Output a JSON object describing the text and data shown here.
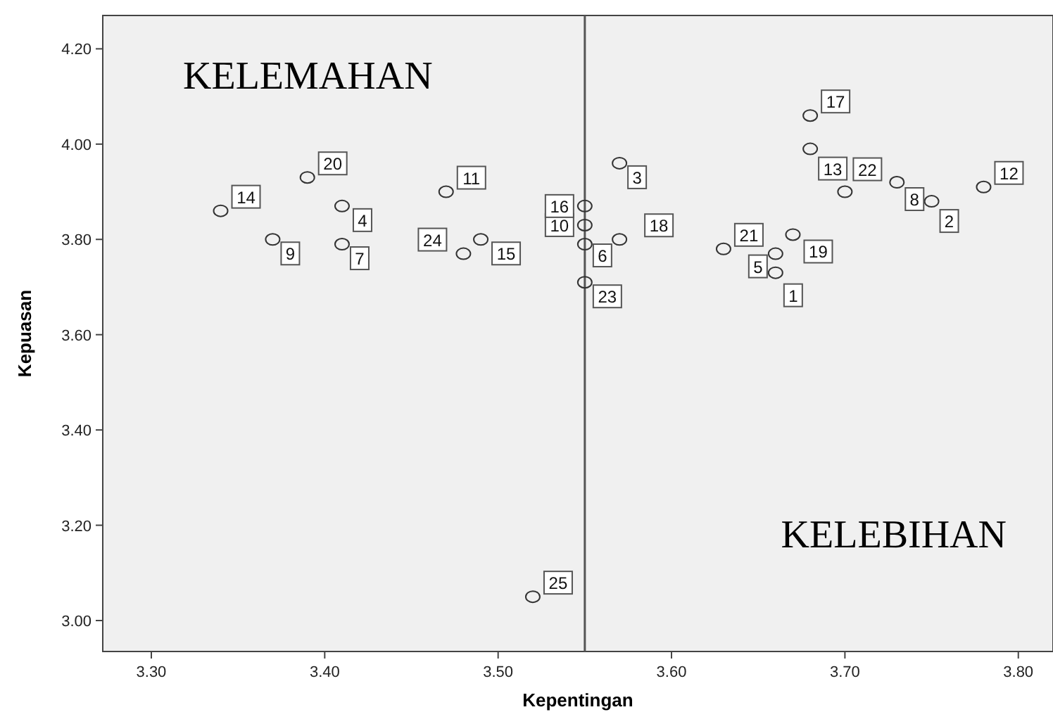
{
  "chart_data": {
    "type": "scatter",
    "xlabel": "Kepentingan",
    "ylabel": "Kepuasan",
    "x": [
      3.66,
      3.75,
      3.57,
      3.41,
      3.66,
      3.55,
      3.41,
      3.73,
      3.37,
      3.55,
      3.47,
      3.78,
      3.68,
      3.34,
      3.49,
      3.55,
      3.68,
      3.57,
      3.67,
      3.39,
      3.63,
      3.7,
      3.55,
      3.48,
      3.52
    ],
    "values": [
      3.73,
      3.88,
      3.96,
      3.87,
      3.77,
      3.79,
      3.79,
      3.92,
      3.8,
      3.83,
      3.9,
      3.91,
      3.99,
      3.86,
      3.8,
      3.87,
      4.06,
      3.8,
      3.81,
      3.93,
      3.78,
      3.9,
      3.71,
      3.77,
      3.05
    ],
    "color": "#333333",
    "marker": "circle",
    "grid": false,
    "xlim": [
      3.272,
      3.82
    ],
    "xticks": [
      {
        "value": 3.3,
        "label": "3.30"
      },
      {
        "value": 3.4,
        "label": "3.40"
      },
      {
        "value": 3.5,
        "label": "3.50"
      },
      {
        "value": 3.6,
        "label": "3.60"
      },
      {
        "value": 3.7,
        "label": "3.70"
      },
      {
        "value": 3.8,
        "label": "3.80"
      }
    ],
    "ylim": [
      2.935,
      4.27
    ],
    "yticks": [
      {
        "value": 3.0,
        "label": "3.00"
      },
      {
        "value": 3.2,
        "label": "3.20"
      },
      {
        "value": 3.4,
        "label": "3.40"
      },
      {
        "value": 3.6,
        "label": "3.60"
      },
      {
        "value": 3.8,
        "label": "3.80"
      },
      {
        "value": 4.0,
        "label": "4.00"
      },
      {
        "value": 4.2,
        "label": "4.20"
      }
    ],
    "ref_lines": [
      {
        "axis": "x",
        "value": 3.55,
        "color": "#555555"
      }
    ],
    "annotations": [
      "KELEMAHAN",
      "KELEBIHAN",
      {
        "text": "1",
        "x": 3.66,
        "y": 3.73
      },
      {
        "text": "2",
        "x": 3.75,
        "y": 3.88
      },
      {
        "text": "3",
        "x": 3.57,
        "y": 3.96
      },
      {
        "text": "4",
        "x": 3.41,
        "y": 3.87
      },
      {
        "text": "5",
        "x": 3.66,
        "y": 3.77
      },
      {
        "text": "6",
        "x": 3.55,
        "y": 3.79
      },
      {
        "text": "7",
        "x": 3.41,
        "y": 3.79
      },
      {
        "text": "8",
        "x": 3.73,
        "y": 3.92
      },
      {
        "text": "9",
        "x": 3.37,
        "y": 3.8
      },
      {
        "text": "10",
        "x": 3.55,
        "y": 3.83
      },
      {
        "text": "11",
        "x": 3.47,
        "y": 3.9
      },
      {
        "text": "12",
        "x": 3.78,
        "y": 3.91
      },
      {
        "text": "13",
        "x": 3.68,
        "y": 3.99
      },
      {
        "text": "14",
        "x": 3.34,
        "y": 3.86
      },
      {
        "text": "15",
        "x": 3.49,
        "y": 3.8
      },
      {
        "text": "16",
        "x": 3.55,
        "y": 3.87
      },
      {
        "text": "17",
        "x": 3.68,
        "y": 4.06
      },
      {
        "text": "18",
        "x": 3.57,
        "y": 3.8
      },
      {
        "text": "19",
        "x": 3.67,
        "y": 3.81
      },
      {
        "text": "20",
        "x": 3.39,
        "y": 3.93
      },
      {
        "text": "21",
        "x": 3.63,
        "y": 3.78
      },
      {
        "text": "22",
        "x": 3.7,
        "y": 3.9
      },
      {
        "text": "23",
        "x": 3.55,
        "y": 3.71
      },
      {
        "text": "24",
        "x": 3.48,
        "y": 3.77
      },
      {
        "text": "25",
        "x": 3.52,
        "y": 3.05
      }
    ]
  }
}
